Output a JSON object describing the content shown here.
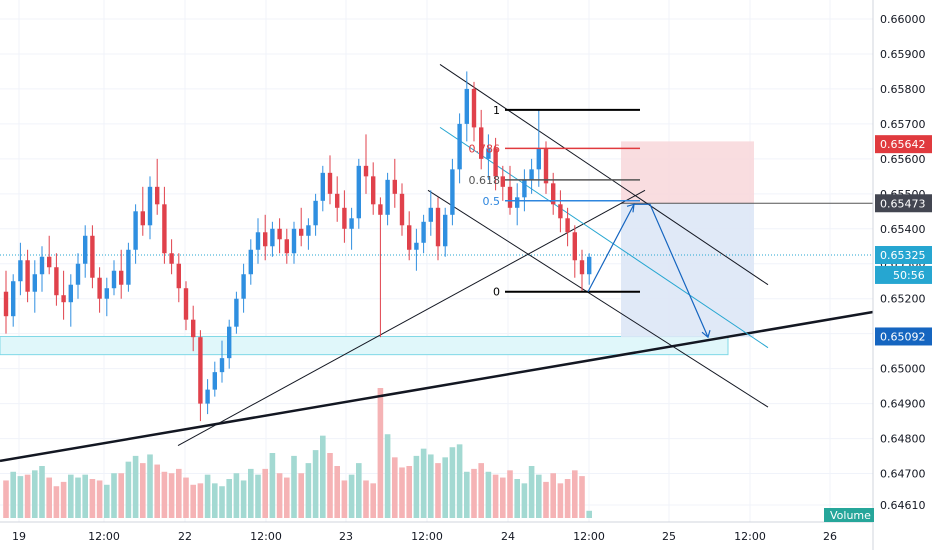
{
  "chart_data": {
    "type": "candlestick",
    "y_range": [
      0.6459,
      0.6602
    ],
    "y_ticks": [
      "0.66000",
      "0.65900",
      "0.65800",
      "0.65700",
      "0.65600",
      "0.65500",
      "0.65400",
      "0.65300",
      "0.65200",
      "0.65100",
      "0.65000",
      "0.64900",
      "0.64800",
      "0.64700",
      "0.64610"
    ],
    "x_ticks": [
      "19",
      "12:00",
      "22",
      "12:00",
      "23",
      "12:00",
      "24",
      "12:00",
      "25",
      "12:00",
      "26"
    ],
    "price_labels": [
      {
        "text": "0.65642",
        "value": 0.65642,
        "color": "#e03a3e"
      },
      {
        "text": "0.65473",
        "value": 0.65473,
        "color": "#434651"
      },
      {
        "text": "0.65325",
        "value": 0.65325,
        "color": "#26a6d1"
      },
      {
        "text": "50:56",
        "value": 0.65268,
        "color": "#26a6d1"
      },
      {
        "text": "0.65092",
        "value": 0.65092,
        "color": "#1565c0"
      }
    ],
    "fib_levels": [
      {
        "label": "1",
        "value": 0.6574,
        "color": "#000000"
      },
      {
        "label": "0.786",
        "value": 0.6563,
        "color": "#e03a3e"
      },
      {
        "label": "0.618",
        "value": 0.6554,
        "color": "#555555"
      },
      {
        "label": "0.5",
        "value": 0.6548,
        "color": "#2e86de"
      },
      {
        "label": "0",
        "value": 0.6522,
        "color": "#000000"
      }
    ],
    "volume_label": "Volume",
    "candles": [
      [
        0.6522,
        0.6528,
        0.651,
        0.6515
      ],
      [
        0.6515,
        0.6527,
        0.6512,
        0.6525
      ],
      [
        0.6525,
        0.6536,
        0.6521,
        0.6531
      ],
      [
        0.6531,
        0.6534,
        0.6519,
        0.6522
      ],
      [
        0.6522,
        0.6531,
        0.6516,
        0.6527
      ],
      [
        0.6527,
        0.6535,
        0.6522,
        0.6532
      ],
      [
        0.6532,
        0.6538,
        0.6527,
        0.6529
      ],
      [
        0.6529,
        0.6533,
        0.6518,
        0.6521
      ],
      [
        0.6521,
        0.6528,
        0.6514,
        0.6519
      ],
      [
        0.6519,
        0.6527,
        0.6512,
        0.6524
      ],
      [
        0.6524,
        0.6533,
        0.652,
        0.653
      ],
      [
        0.653,
        0.6541,
        0.6526,
        0.6538
      ],
      [
        0.6538,
        0.6541,
        0.6523,
        0.6526
      ],
      [
        0.6526,
        0.6529,
        0.6516,
        0.652
      ],
      [
        0.652,
        0.6526,
        0.6515,
        0.6523
      ],
      [
        0.6523,
        0.6531,
        0.6521,
        0.6528
      ],
      [
        0.6528,
        0.6534,
        0.652,
        0.6524
      ],
      [
        0.6524,
        0.6536,
        0.6522,
        0.6534
      ],
      [
        0.6534,
        0.6547,
        0.653,
        0.6545
      ],
      [
        0.6545,
        0.6552,
        0.6538,
        0.6541
      ],
      [
        0.6541,
        0.6555,
        0.6537,
        0.6552
      ],
      [
        0.6552,
        0.656,
        0.6544,
        0.6547
      ],
      [
        0.6547,
        0.6552,
        0.653,
        0.6533
      ],
      [
        0.6533,
        0.6537,
        0.6527,
        0.653
      ],
      [
        0.653,
        0.6533,
        0.6519,
        0.6523
      ],
      [
        0.6523,
        0.6525,
        0.6511,
        0.6514
      ],
      [
        0.6514,
        0.6518,
        0.6505,
        0.6509
      ],
      [
        0.6509,
        0.6511,
        0.6485,
        0.649
      ],
      [
        0.649,
        0.6497,
        0.6487,
        0.6494
      ],
      [
        0.6494,
        0.6502,
        0.6492,
        0.6499
      ],
      [
        0.6499,
        0.6508,
        0.6496,
        0.6503
      ],
      [
        0.6503,
        0.6514,
        0.65,
        0.6512
      ],
      [
        0.6512,
        0.6522,
        0.651,
        0.652
      ],
      [
        0.652,
        0.653,
        0.6516,
        0.6527
      ],
      [
        0.6527,
        0.6537,
        0.6524,
        0.6534
      ],
      [
        0.6534,
        0.6543,
        0.653,
        0.6539
      ],
      [
        0.6539,
        0.6544,
        0.6531,
        0.6535
      ],
      [
        0.6535,
        0.6542,
        0.6532,
        0.654
      ],
      [
        0.654,
        0.6543,
        0.6533,
        0.6537
      ],
      [
        0.6537,
        0.654,
        0.653,
        0.6533
      ],
      [
        0.6533,
        0.6542,
        0.653,
        0.654
      ],
      [
        0.654,
        0.6546,
        0.6535,
        0.6538
      ],
      [
        0.6538,
        0.6543,
        0.6534,
        0.6541
      ],
      [
        0.6541,
        0.655,
        0.6538,
        0.6548
      ],
      [
        0.6548,
        0.6558,
        0.6545,
        0.6556
      ],
      [
        0.6556,
        0.6561,
        0.6547,
        0.655
      ],
      [
        0.655,
        0.6555,
        0.6542,
        0.6546
      ],
      [
        0.6546,
        0.6551,
        0.6536,
        0.654
      ],
      [
        0.654,
        0.6546,
        0.6534,
        0.6543
      ],
      [
        0.6543,
        0.656,
        0.654,
        0.6558
      ],
      [
        0.6558,
        0.6567,
        0.655,
        0.6555
      ],
      [
        0.6555,
        0.6559,
        0.6544,
        0.6547
      ],
      [
        0.6547,
        0.6549,
        0.6509,
        0.6544
      ],
      [
        0.6544,
        0.6556,
        0.6541,
        0.6554
      ],
      [
        0.6554,
        0.656,
        0.6546,
        0.655
      ],
      [
        0.655,
        0.6553,
        0.6538,
        0.6541
      ],
      [
        0.6541,
        0.6545,
        0.6531,
        0.6534
      ],
      [
        0.6534,
        0.654,
        0.6528,
        0.6536
      ],
      [
        0.6536,
        0.6544,
        0.6533,
        0.6542
      ],
      [
        0.6542,
        0.6551,
        0.6538,
        0.6546
      ],
      [
        0.6546,
        0.6549,
        0.6531,
        0.6535
      ],
      [
        0.6535,
        0.6546,
        0.6532,
        0.6544
      ],
      [
        0.6544,
        0.656,
        0.6541,
        0.6557
      ],
      [
        0.6557,
        0.6573,
        0.6553,
        0.657
      ],
      [
        0.657,
        0.6585,
        0.6565,
        0.658
      ],
      [
        0.658,
        0.6582,
        0.6565,
        0.6569
      ],
      [
        0.6569,
        0.6574,
        0.6557,
        0.656
      ],
      [
        0.656,
        0.6567,
        0.6554,
        0.6563
      ],
      [
        0.6563,
        0.6566,
        0.6551,
        0.6555
      ],
      [
        0.6555,
        0.6558,
        0.6548,
        0.6552
      ],
      [
        0.6552,
        0.6558,
        0.6544,
        0.6546
      ],
      [
        0.6546,
        0.6553,
        0.6541,
        0.6549
      ],
      [
        0.6549,
        0.6557,
        0.6545,
        0.6554
      ],
      [
        0.6554,
        0.656,
        0.655,
        0.6557
      ],
      [
        0.6557,
        0.6574,
        0.6552,
        0.6563
      ],
      [
        0.6563,
        0.6565,
        0.655,
        0.6553
      ],
      [
        0.6553,
        0.6556,
        0.6544,
        0.6547
      ],
      [
        0.6547,
        0.6551,
        0.6539,
        0.6543
      ],
      [
        0.6543,
        0.6546,
        0.6535,
        0.6539
      ],
      [
        0.6539,
        0.6541,
        0.6526,
        0.6531
      ],
      [
        0.6531,
        0.6534,
        0.6522,
        0.6527
      ],
      [
        0.6527,
        0.6533,
        0.6524,
        0.6532
      ]
    ],
    "volumes": [
      26,
      32,
      29,
      30,
      33,
      36,
      28,
      22,
      25,
      30,
      28,
      30,
      27,
      26,
      23,
      31,
      31,
      39,
      43,
      38,
      44,
      37,
      32,
      31,
      34,
      28,
      23,
      24,
      30,
      24,
      22,
      27,
      31,
      26,
      34,
      30,
      34,
      45,
      31,
      28,
      43,
      31,
      38,
      47,
      57,
      45,
      36,
      26,
      30,
      38,
      26,
      24,
      90,
      58,
      42,
      35,
      36,
      43,
      48,
      44,
      38,
      42,
      49,
      51,
      32,
      34,
      38,
      32,
      30,
      28,
      33,
      27,
      24,
      36,
      30,
      25,
      31,
      24,
      27,
      33,
      29,
      5
    ]
  }
}
